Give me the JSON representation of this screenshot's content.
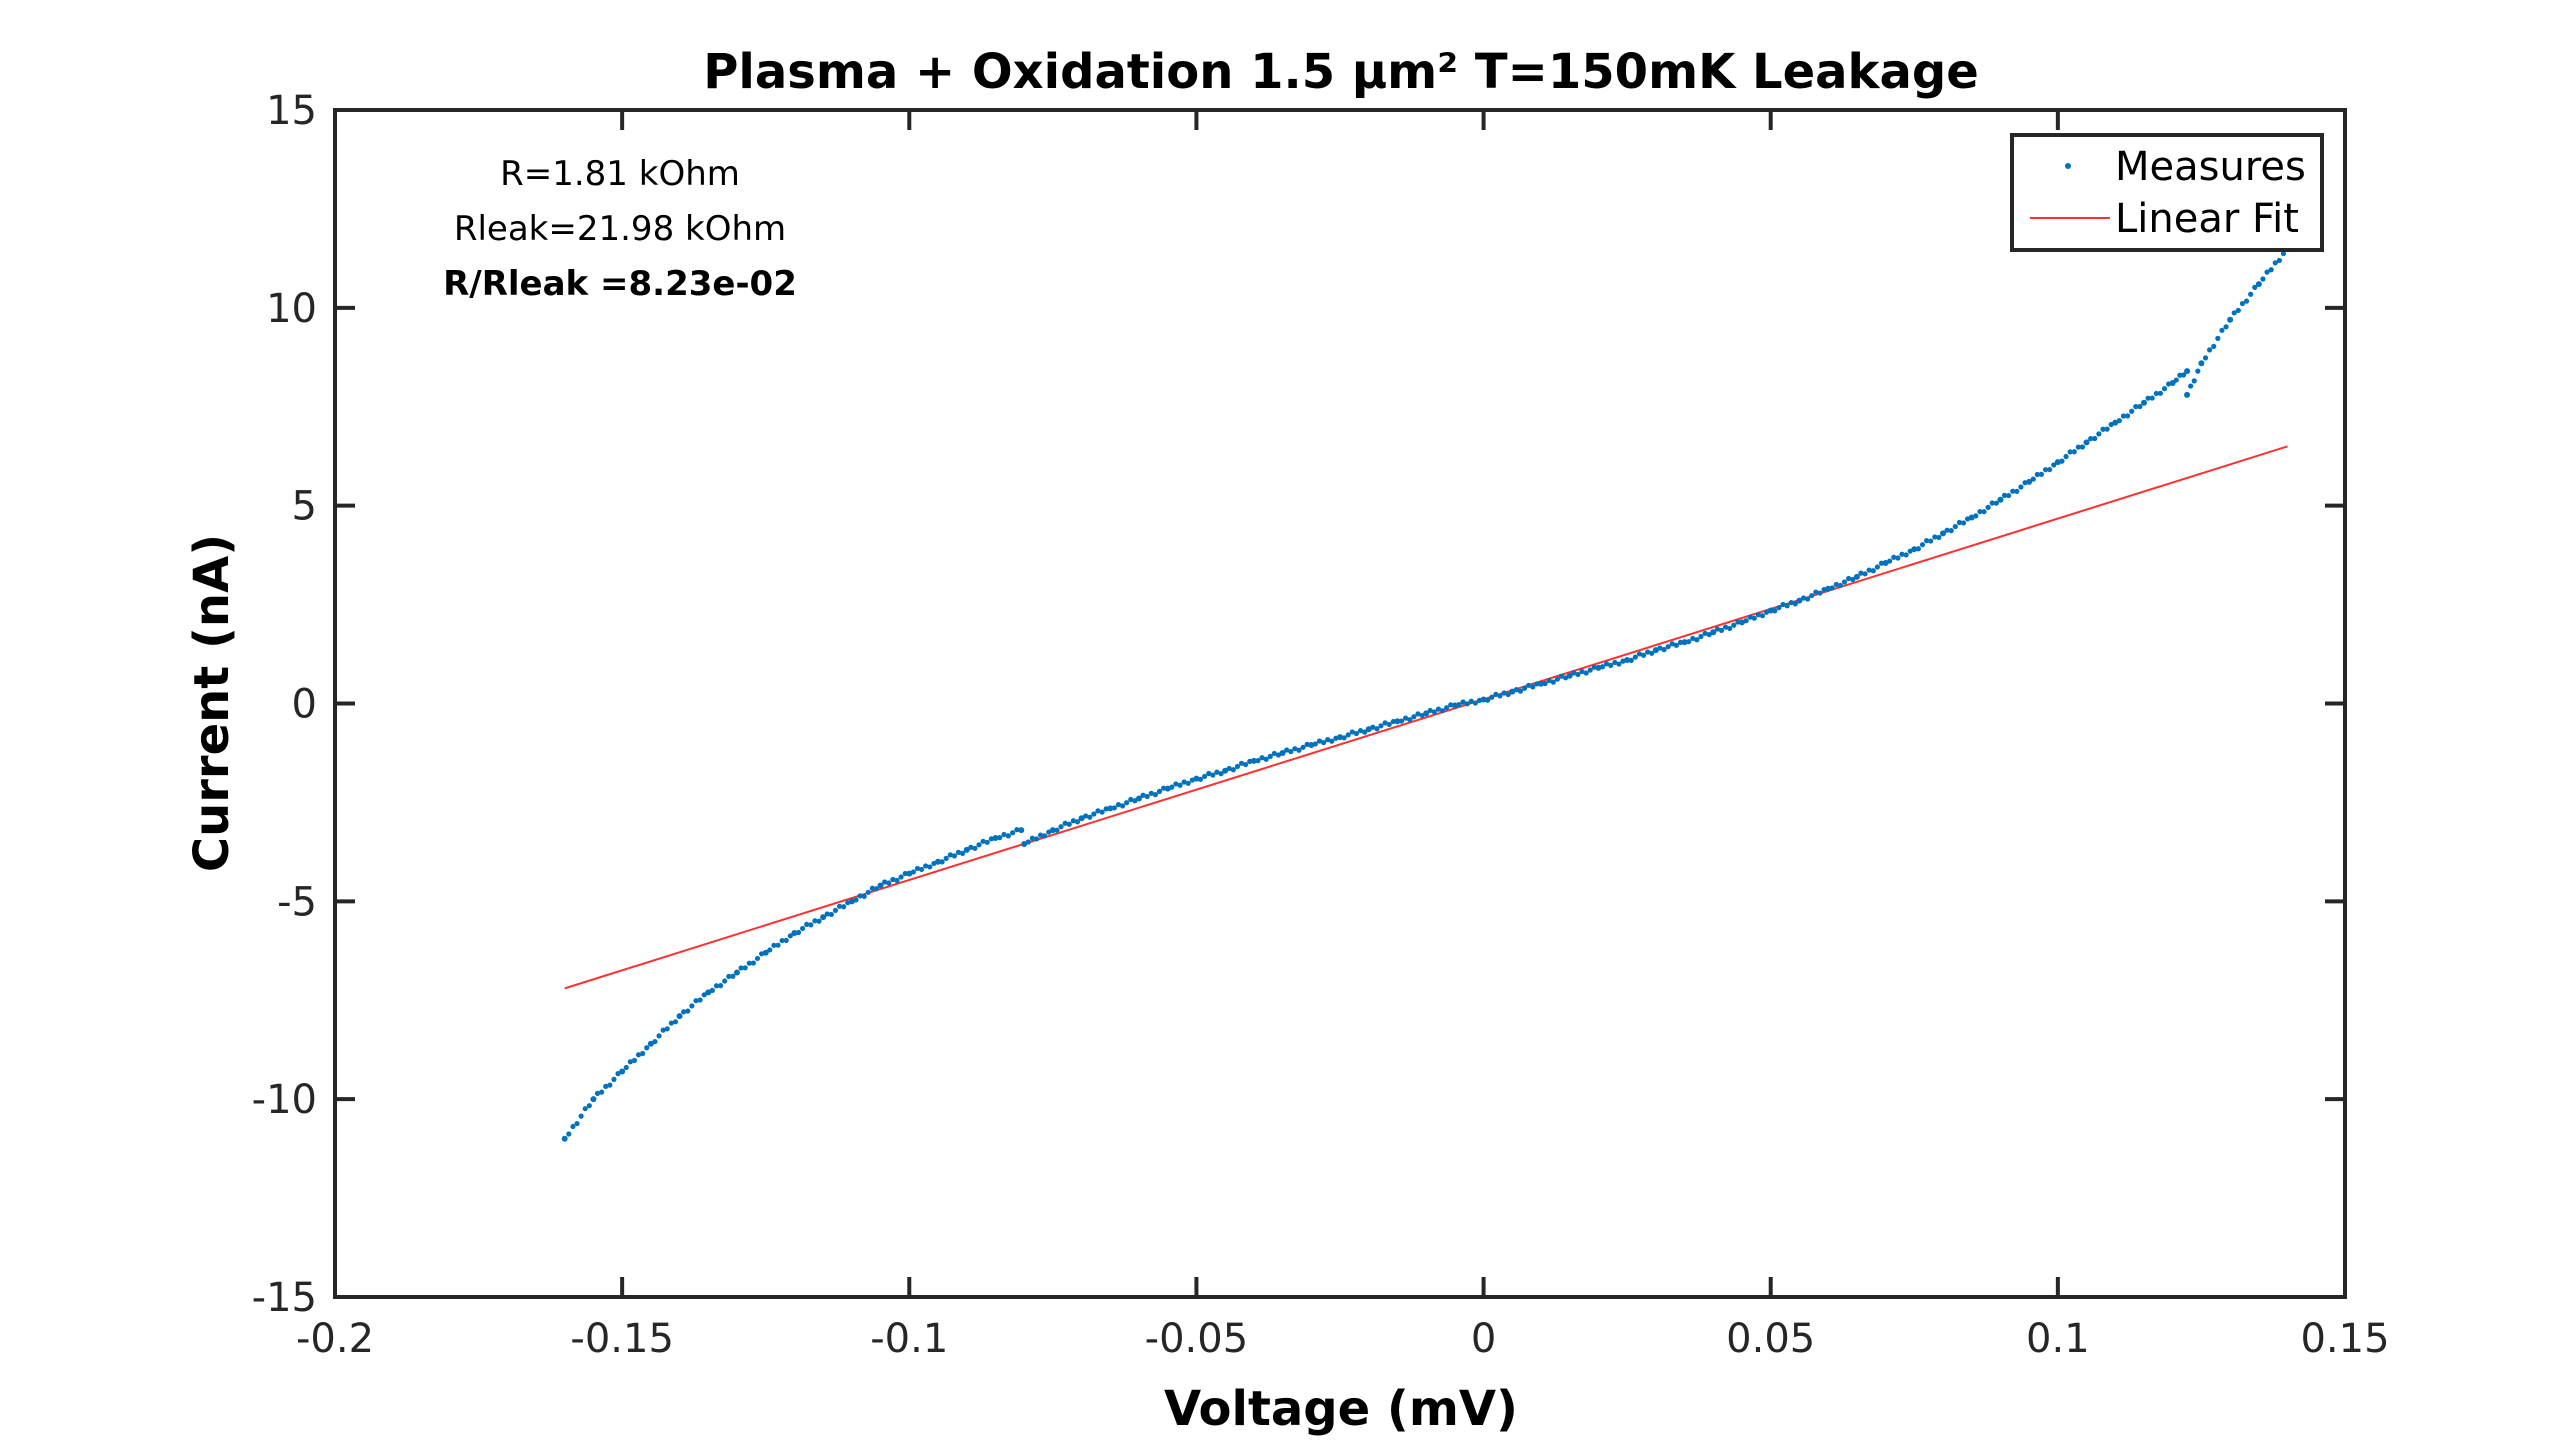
{
  "chart_data": {
    "type": "scatter",
    "title": "Plasma + Oxidation 1.5 µm² T=150mK Leakage",
    "xlabel": "Voltage (mV)",
    "ylabel": "Current (nA)",
    "xlim": [
      -0.2,
      0.15
    ],
    "ylim": [
      -15,
      15
    ],
    "xticks": [
      -0.2,
      -0.15,
      -0.1,
      -0.05,
      0,
      0.05,
      0.1,
      0.15
    ],
    "xtick_labels": [
      "-0.2",
      "-0.15",
      "-0.1",
      "-0.05",
      "0",
      "0.05",
      "0.1",
      "0.15"
    ],
    "yticks": [
      -15,
      -10,
      -5,
      0,
      5,
      10,
      15
    ],
    "ytick_labels": [
      "-15",
      "-10",
      "-5",
      "0",
      "5",
      "10",
      "15"
    ],
    "grid": false,
    "legend_position": "top-right",
    "annotations": [
      "R=1.81 kOhm",
      "Rleak=21.98 kOhm",
      "R/Rleak =8.23e-02"
    ],
    "series": [
      {
        "name": "Measures",
        "kind": "points",
        "color": "#0072BD",
        "x": [
          -0.16,
          -0.155,
          -0.15,
          -0.145,
          -0.14,
          -0.135,
          -0.13,
          -0.125,
          -0.12,
          -0.115,
          -0.11,
          -0.105,
          -0.1,
          -0.095,
          -0.09,
          -0.085,
          -0.0805,
          -0.08,
          -0.075,
          -0.07,
          -0.065,
          -0.06,
          -0.055,
          -0.05,
          -0.045,
          -0.04,
          -0.035,
          -0.03,
          -0.025,
          -0.02,
          -0.015,
          -0.01,
          -0.005,
          0,
          0.005,
          0.01,
          0.015,
          0.02,
          0.025,
          0.03,
          0.035,
          0.04,
          0.045,
          0.05,
          0.055,
          0.06,
          0.065,
          0.07,
          0.075,
          0.08,
          0.085,
          0.09,
          0.095,
          0.1,
          0.105,
          0.11,
          0.115,
          0.12,
          0.1225,
          0.1225,
          0.125,
          0.13,
          0.135,
          0.14
        ],
        "y": [
          -11.0,
          -10.0,
          -9.3,
          -8.6,
          -7.9,
          -7.3,
          -6.8,
          -6.3,
          -5.8,
          -5.4,
          -5.0,
          -4.6,
          -4.3,
          -4.0,
          -3.7,
          -3.4,
          -3.2,
          -3.55,
          -3.2,
          -2.9,
          -2.65,
          -2.4,
          -2.15,
          -1.9,
          -1.7,
          -1.45,
          -1.25,
          -1.05,
          -0.85,
          -0.65,
          -0.45,
          -0.25,
          -0.05,
          0.1,
          0.3,
          0.5,
          0.7,
          0.9,
          1.1,
          1.35,
          1.55,
          1.8,
          2.05,
          2.35,
          2.6,
          2.9,
          3.2,
          3.55,
          3.9,
          4.3,
          4.7,
          5.15,
          5.6,
          6.1,
          6.6,
          7.1,
          7.6,
          8.1,
          8.4,
          7.8,
          8.6,
          9.7,
          10.6,
          11.5
        ]
      },
      {
        "name": "Linear Fit",
        "kind": "line",
        "color": "#FF3030",
        "x": [
          -0.16,
          0.14
        ],
        "y": [
          -7.2,
          6.5
        ]
      }
    ]
  }
}
